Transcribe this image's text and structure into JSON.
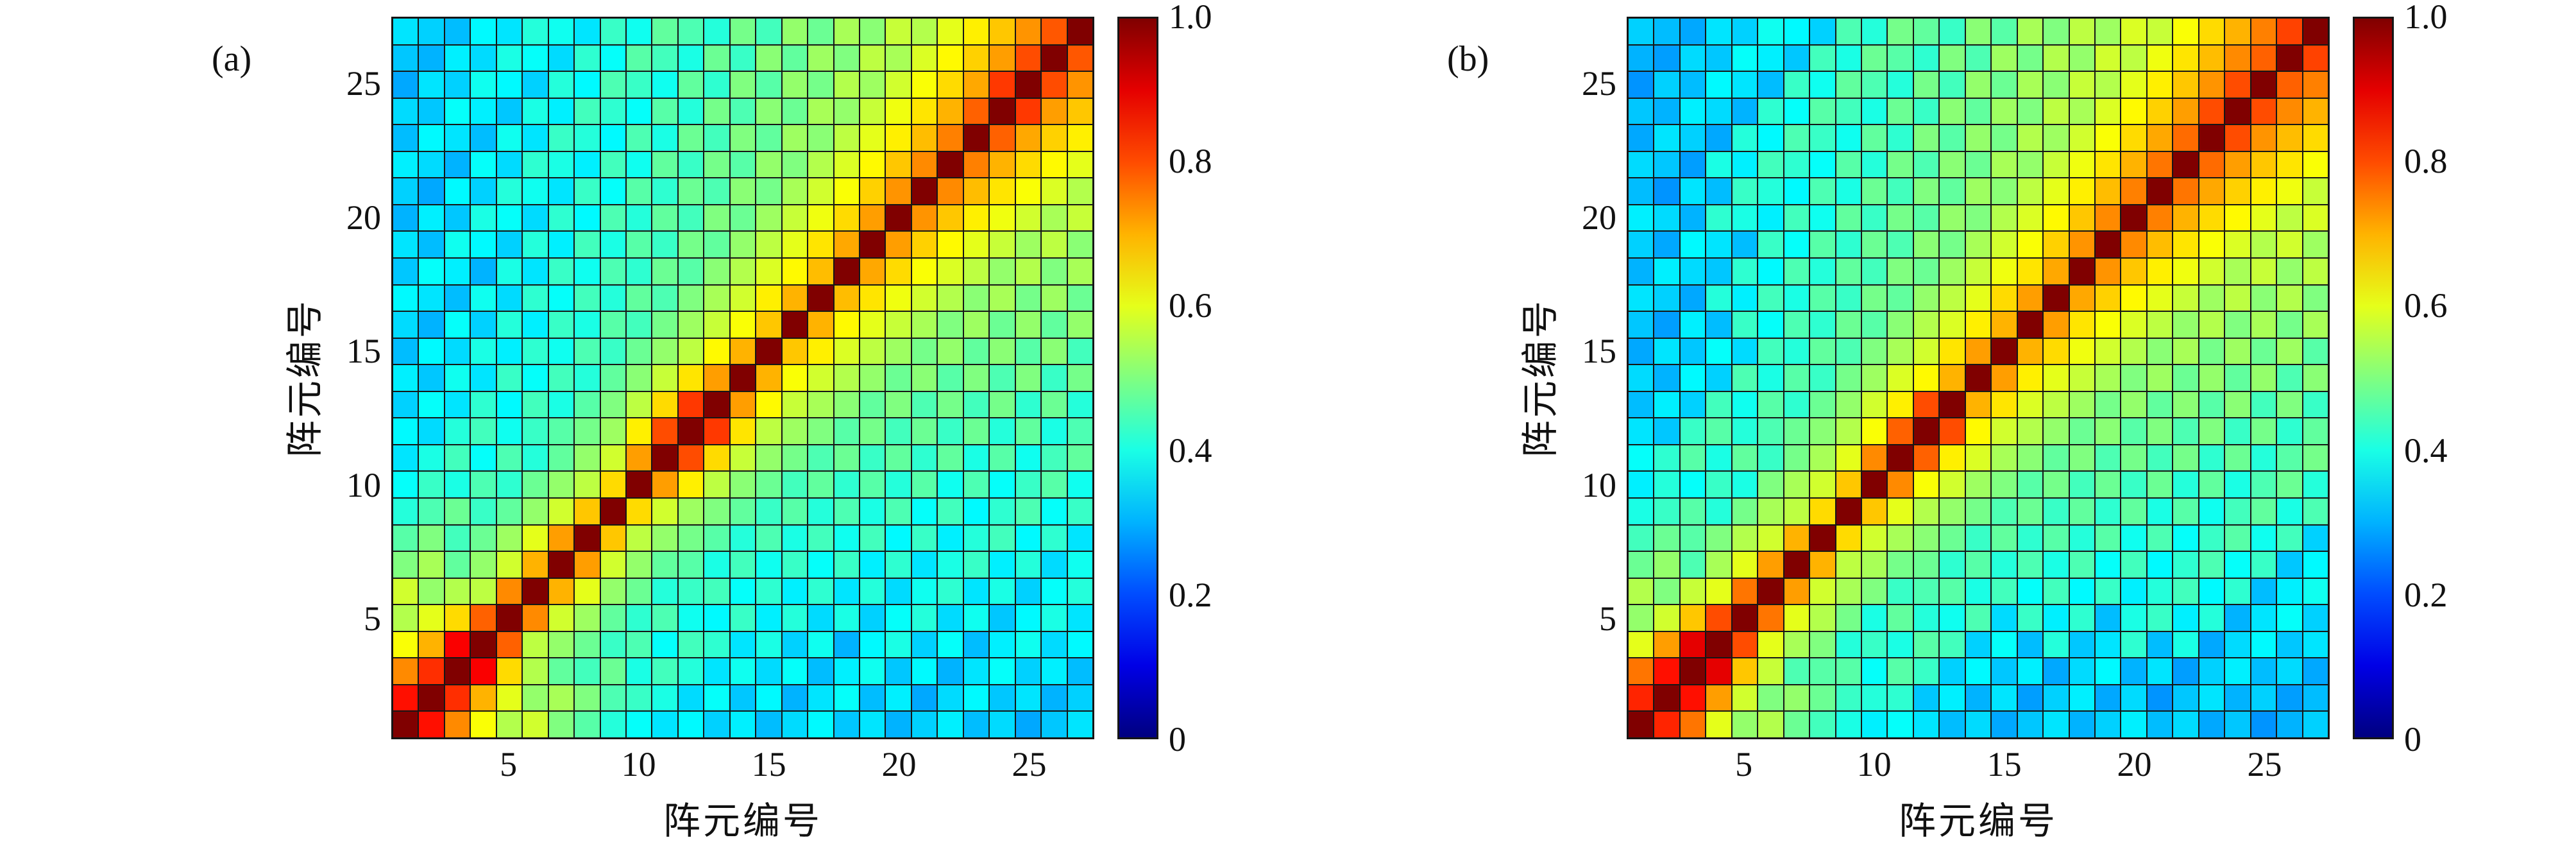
{
  "figure": {
    "background_color": "#ffffff",
    "grid_line_color": "#161616",
    "colormap_name": "jet",
    "diag_color": "#800000"
  },
  "chart_data": [
    {
      "type": "heatmap",
      "panel_label": "(a)",
      "xlabel": "阵元编号",
      "ylabel": "阵元编号",
      "n": 27,
      "x_range": [
        1,
        27
      ],
      "y_range": [
        1,
        27
      ],
      "x_ticks": [
        5,
        10,
        15,
        20,
        25
      ],
      "y_ticks": [
        5,
        10,
        15,
        20,
        25
      ],
      "x_tick_labels": [
        "5",
        "10",
        "15",
        "20",
        "25"
      ],
      "y_tick_labels": [
        "5",
        "10",
        "15",
        "20",
        "25"
      ],
      "colorbar_range": [
        0,
        1
      ],
      "colorbar_ticks": [
        0,
        0.2,
        0.4,
        0.6,
        0.8,
        1
      ],
      "colorbar_tick_labels": [
        "0",
        "0.2",
        "0.4",
        "0.6",
        "0.8",
        "1.0"
      ],
      "colormap": "jet",
      "symmetric": true,
      "grid_lines": true,
      "matrix_lower_triangle": [
        [
          1.0
        ],
        [
          0.86,
          1.0
        ],
        [
          0.74,
          0.83,
          1.0
        ],
        [
          0.62,
          0.7,
          0.88,
          1.0
        ],
        [
          0.55,
          0.6,
          0.66,
          0.78,
          1.0
        ],
        [
          0.58,
          0.52,
          0.55,
          0.56,
          0.74,
          1.0
        ],
        [
          0.5,
          0.54,
          0.47,
          0.52,
          0.58,
          0.7,
          1.0
        ],
        [
          0.46,
          0.5,
          0.44,
          0.48,
          0.53,
          0.6,
          0.72,
          1.0
        ],
        [
          0.41,
          0.45,
          0.48,
          0.43,
          0.47,
          0.52,
          0.58,
          0.68,
          1.0
        ],
        [
          0.38,
          0.43,
          0.4,
          0.45,
          0.42,
          0.48,
          0.52,
          0.56,
          0.66,
          1.0
        ],
        [
          0.35,
          0.4,
          0.44,
          0.38,
          0.45,
          0.41,
          0.47,
          0.52,
          0.58,
          0.72,
          1.0
        ],
        [
          0.37,
          0.34,
          0.41,
          0.44,
          0.39,
          0.43,
          0.46,
          0.49,
          0.53,
          0.64,
          0.8,
          1.0
        ],
        [
          0.33,
          0.38,
          0.35,
          0.42,
          0.37,
          0.44,
          0.4,
          0.46,
          0.5,
          0.56,
          0.66,
          0.82,
          1.0
        ],
        [
          0.36,
          0.32,
          0.39,
          0.35,
          0.43,
          0.38,
          0.44,
          0.41,
          0.47,
          0.51,
          0.57,
          0.65,
          0.72,
          1.0
        ],
        [
          0.31,
          0.37,
          0.34,
          0.4,
          0.36,
          0.42,
          0.39,
          0.45,
          0.43,
          0.48,
          0.52,
          0.56,
          0.63,
          0.7,
          1.0
        ],
        [
          0.34,
          0.3,
          0.38,
          0.33,
          0.41,
          0.36,
          0.43,
          0.4,
          0.46,
          0.44,
          0.49,
          0.53,
          0.57,
          0.62,
          0.68,
          1.0
        ],
        [
          0.37,
          0.35,
          0.31,
          0.39,
          0.34,
          0.42,
          0.38,
          0.44,
          0.41,
          0.47,
          0.45,
          0.5,
          0.54,
          0.58,
          0.64,
          0.7,
          1.0
        ],
        [
          0.32,
          0.38,
          0.36,
          0.3,
          0.4,
          0.35,
          0.43,
          0.39,
          0.45,
          0.42,
          0.48,
          0.46,
          0.51,
          0.55,
          0.59,
          0.63,
          0.69,
          1.0
        ],
        [
          0.35,
          0.31,
          0.39,
          0.37,
          0.33,
          0.41,
          0.36,
          0.44,
          0.4,
          0.46,
          0.43,
          0.49,
          0.47,
          0.52,
          0.56,
          0.6,
          0.65,
          0.71,
          1.0
        ],
        [
          0.3,
          0.36,
          0.32,
          0.4,
          0.38,
          0.34,
          0.42,
          0.37,
          0.45,
          0.41,
          0.47,
          0.44,
          0.5,
          0.48,
          0.53,
          0.57,
          0.61,
          0.66,
          0.72,
          1.0
        ],
        [
          0.33,
          0.29,
          0.37,
          0.33,
          0.41,
          0.39,
          0.35,
          0.43,
          0.38,
          0.46,
          0.42,
          0.48,
          0.45,
          0.51,
          0.49,
          0.54,
          0.58,
          0.62,
          0.67,
          0.73,
          1.0
        ],
        [
          0.36,
          0.34,
          0.3,
          0.38,
          0.34,
          0.42,
          0.4,
          0.36,
          0.44,
          0.39,
          0.47,
          0.43,
          0.49,
          0.46,
          0.52,
          0.5,
          0.55,
          0.59,
          0.63,
          0.68,
          0.74,
          1.0
        ],
        [
          0.31,
          0.37,
          0.35,
          0.31,
          0.39,
          0.35,
          0.43,
          0.41,
          0.37,
          0.45,
          0.4,
          0.48,
          0.44,
          0.5,
          0.47,
          0.53,
          0.51,
          0.56,
          0.6,
          0.64,
          0.69,
          0.75,
          1.0
        ],
        [
          0.34,
          0.32,
          0.38,
          0.36,
          0.32,
          0.4,
          0.36,
          0.44,
          0.42,
          0.38,
          0.46,
          0.41,
          0.49,
          0.45,
          0.51,
          0.48,
          0.54,
          0.52,
          0.57,
          0.61,
          0.65,
          0.7,
          0.78,
          1.0
        ],
        [
          0.29,
          0.35,
          0.33,
          0.39,
          0.37,
          0.33,
          0.41,
          0.37,
          0.45,
          0.43,
          0.39,
          0.47,
          0.42,
          0.5,
          0.46,
          0.52,
          0.49,
          0.55,
          0.53,
          0.58,
          0.62,
          0.66,
          0.71,
          0.82,
          1.0
        ],
        [
          0.32,
          0.3,
          0.36,
          0.34,
          0.4,
          0.38,
          0.34,
          0.42,
          0.38,
          0.46,
          0.44,
          0.4,
          0.48,
          0.43,
          0.51,
          0.47,
          0.53,
          0.5,
          0.56,
          0.54,
          0.59,
          0.63,
          0.67,
          0.72,
          0.8,
          1.0
        ],
        [
          0.35,
          0.33,
          0.31,
          0.37,
          0.35,
          0.41,
          0.39,
          0.35,
          0.43,
          0.39,
          0.47,
          0.45,
          0.41,
          0.49,
          0.44,
          0.52,
          0.48,
          0.54,
          0.51,
          0.57,
          0.55,
          0.6,
          0.64,
          0.68,
          0.73,
          0.79,
          1.0
        ]
      ]
    },
    {
      "type": "heatmap",
      "panel_label": "(b)",
      "xlabel": "阵元编号",
      "ylabel": "阵元编号",
      "n": 27,
      "x_range": [
        1,
        27
      ],
      "y_range": [
        1,
        27
      ],
      "x_ticks": [
        5,
        10,
        15,
        20,
        25
      ],
      "y_ticks": [
        5,
        10,
        15,
        20,
        25
      ],
      "x_tick_labels": [
        "5",
        "10",
        "15",
        "20",
        "25"
      ],
      "y_tick_labels": [
        "5",
        "10",
        "15",
        "20",
        "25"
      ],
      "colorbar_range": [
        0,
        1
      ],
      "colorbar_ticks": [
        0,
        0.2,
        0.4,
        0.6,
        0.8,
        1
      ],
      "colorbar_tick_labels": [
        "0",
        "0.2",
        "0.4",
        "0.6",
        "0.8",
        "1.0"
      ],
      "colormap": "jet",
      "symmetric": true,
      "grid_lines": true,
      "matrix_lower_triangle": [
        [
          1.0
        ],
        [
          0.84,
          1.0
        ],
        [
          0.76,
          0.86,
          1.0
        ],
        [
          0.6,
          0.72,
          0.9,
          1.0
        ],
        [
          0.52,
          0.58,
          0.68,
          0.8,
          1.0
        ],
        [
          0.55,
          0.5,
          0.57,
          0.6,
          0.76,
          1.0
        ],
        [
          0.48,
          0.52,
          0.45,
          0.54,
          0.6,
          0.72,
          1.0
        ],
        [
          0.44,
          0.48,
          0.46,
          0.5,
          0.55,
          0.58,
          0.7,
          1.0
        ],
        [
          0.4,
          0.43,
          0.46,
          0.41,
          0.49,
          0.54,
          0.56,
          0.66,
          1.0
        ],
        [
          0.36,
          0.41,
          0.38,
          0.43,
          0.4,
          0.5,
          0.54,
          0.58,
          0.68,
          1.0
        ],
        [
          0.38,
          0.42,
          0.46,
          0.4,
          0.47,
          0.43,
          0.49,
          0.54,
          0.6,
          0.74,
          1.0
        ],
        [
          0.35,
          0.32,
          0.43,
          0.46,
          0.41,
          0.45,
          0.48,
          0.51,
          0.55,
          0.62,
          0.78,
          1.0
        ],
        [
          0.31,
          0.36,
          0.33,
          0.44,
          0.39,
          0.46,
          0.42,
          0.48,
          0.52,
          0.58,
          0.64,
          0.8,
          1.0
        ],
        [
          0.34,
          0.3,
          0.37,
          0.33,
          0.45,
          0.4,
          0.46,
          0.43,
          0.49,
          0.53,
          0.59,
          0.63,
          0.7,
          1.0
        ],
        [
          0.29,
          0.35,
          0.32,
          0.38,
          0.34,
          0.44,
          0.41,
          0.47,
          0.45,
          0.5,
          0.54,
          0.58,
          0.65,
          0.72,
          1.0
        ],
        [
          0.32,
          0.28,
          0.36,
          0.31,
          0.43,
          0.38,
          0.45,
          0.42,
          0.48,
          0.46,
          0.51,
          0.55,
          0.59,
          0.64,
          0.7,
          1.0
        ],
        [
          0.35,
          0.33,
          0.29,
          0.41,
          0.36,
          0.44,
          0.4,
          0.46,
          0.43,
          0.49,
          0.47,
          0.52,
          0.56,
          0.6,
          0.66,
          0.72,
          1.0
        ],
        [
          0.3,
          0.36,
          0.34,
          0.32,
          0.42,
          0.37,
          0.45,
          0.41,
          0.47,
          0.44,
          0.5,
          0.48,
          0.53,
          0.57,
          0.61,
          0.65,
          0.71,
          1.0
        ],
        [
          0.33,
          0.29,
          0.37,
          0.35,
          0.31,
          0.43,
          0.38,
          0.46,
          0.42,
          0.48,
          0.45,
          0.51,
          0.49,
          0.54,
          0.58,
          0.62,
          0.67,
          0.73,
          1.0
        ],
        [
          0.36,
          0.34,
          0.3,
          0.42,
          0.4,
          0.36,
          0.44,
          0.39,
          0.47,
          0.43,
          0.49,
          0.46,
          0.52,
          0.5,
          0.55,
          0.59,
          0.63,
          0.68,
          0.74,
          1.0
        ],
        [
          0.31,
          0.27,
          0.35,
          0.31,
          0.43,
          0.41,
          0.37,
          0.45,
          0.4,
          0.48,
          0.44,
          0.5,
          0.47,
          0.53,
          0.51,
          0.56,
          0.6,
          0.64,
          0.69,
          0.75,
          1.0
        ],
        [
          0.34,
          0.32,
          0.28,
          0.4,
          0.36,
          0.44,
          0.42,
          0.38,
          0.46,
          0.41,
          0.49,
          0.45,
          0.51,
          0.48,
          0.54,
          0.52,
          0.57,
          0.61,
          0.65,
          0.7,
          0.76,
          1.0
        ],
        [
          0.29,
          0.35,
          0.33,
          0.29,
          0.41,
          0.37,
          0.45,
          0.43,
          0.39,
          0.47,
          0.42,
          0.5,
          0.46,
          0.52,
          0.49,
          0.55,
          0.53,
          0.58,
          0.62,
          0.66,
          0.71,
          0.77,
          1.0
        ],
        [
          0.32,
          0.3,
          0.36,
          0.34,
          0.3,
          0.42,
          0.38,
          0.46,
          0.44,
          0.4,
          0.48,
          0.43,
          0.51,
          0.47,
          0.53,
          0.5,
          0.56,
          0.54,
          0.59,
          0.63,
          0.67,
          0.72,
          0.8,
          1.0
        ],
        [
          0.27,
          0.33,
          0.31,
          0.37,
          0.35,
          0.31,
          0.43,
          0.39,
          0.47,
          0.45,
          0.41,
          0.49,
          0.44,
          0.52,
          0.48,
          0.54,
          0.51,
          0.57,
          0.55,
          0.6,
          0.64,
          0.68,
          0.73,
          0.8,
          1.0
        ],
        [
          0.3,
          0.28,
          0.34,
          0.32,
          0.38,
          0.36,
          0.32,
          0.44,
          0.4,
          0.48,
          0.46,
          0.42,
          0.5,
          0.45,
          0.53,
          0.49,
          0.55,
          0.52,
          0.58,
          0.56,
          0.61,
          0.65,
          0.69,
          0.74,
          0.78,
          1.0
        ],
        [
          0.33,
          0.31,
          0.29,
          0.35,
          0.33,
          0.39,
          0.37,
          0.33,
          0.45,
          0.41,
          0.49,
          0.47,
          0.43,
          0.51,
          0.46,
          0.54,
          0.5,
          0.56,
          0.53,
          0.59,
          0.57,
          0.62,
          0.66,
          0.7,
          0.75,
          0.81,
          1.0
        ]
      ]
    }
  ]
}
